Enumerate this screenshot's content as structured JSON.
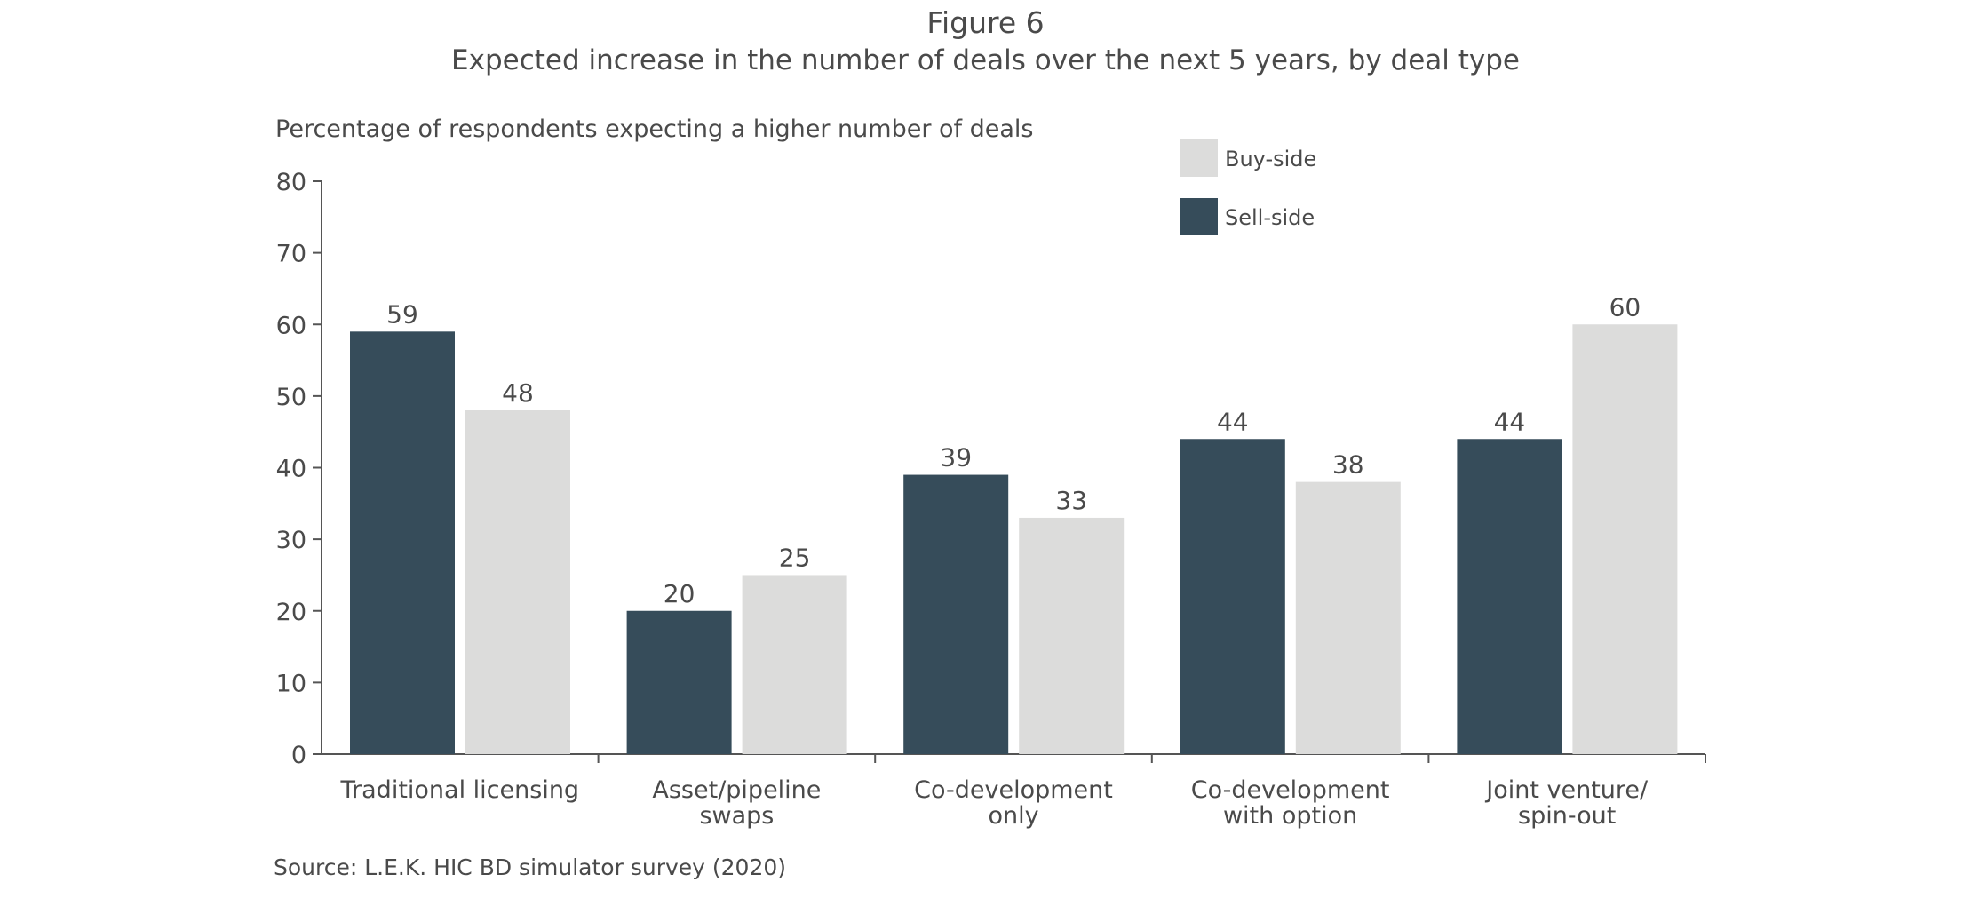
{
  "figure_label": "Figure 6",
  "source": "Source: L.E.K. HIC BD simulator survey (2020)",
  "chart_data": {
    "type": "bar",
    "title": "Expected increase in the number of deals over the next 5 years, by deal type",
    "ylabel": "Percentage of respondents expecting a higher number of deals",
    "xlabel": "",
    "ylim": [
      0,
      80
    ],
    "yticks": [
      0,
      10,
      20,
      30,
      40,
      50,
      60,
      70,
      80
    ],
    "categories": [
      [
        "Traditional licensing"
      ],
      [
        "Asset/pipeline",
        "swaps"
      ],
      [
        "Co-development",
        "only"
      ],
      [
        "Co-development",
        "with option"
      ],
      [
        "Joint venture/",
        "spin-out"
      ]
    ],
    "series": [
      {
        "name": "Sell-side",
        "color": "#364c5a",
        "values": [
          59,
          20,
          39,
          44,
          44
        ]
      },
      {
        "name": "Buy-side",
        "color": "#dcdcdb",
        "values": [
          48,
          25,
          33,
          38,
          60
        ]
      }
    ],
    "legend": {
      "placement": "top-center",
      "order": [
        "Buy-side",
        "Sell-side"
      ]
    },
    "grid": false
  }
}
